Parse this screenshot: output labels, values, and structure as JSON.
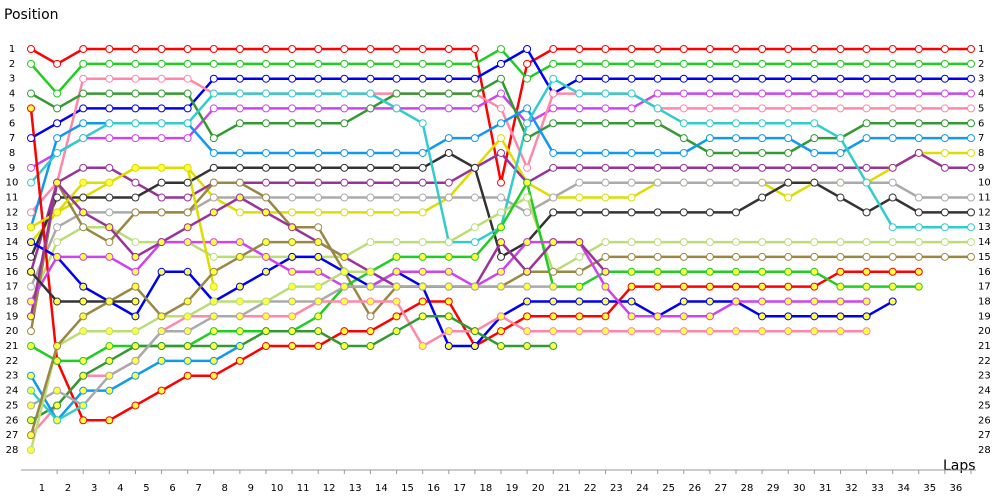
{
  "chart_data": {
    "type": "line",
    "y_label": "Position",
    "x_label": "Laps",
    "x": [
      0,
      1,
      2,
      3,
      4,
      5,
      6,
      7,
      8,
      9,
      10,
      11,
      12,
      13,
      14,
      15,
      16,
      17,
      18,
      19,
      20,
      21,
      22,
      23,
      24,
      25,
      26,
      27,
      28,
      29,
      30,
      31,
      32,
      33,
      34,
      35,
      36
    ],
    "xlim": [
      0,
      36
    ],
    "ylim": [
      1,
      28
    ],
    "y_inverted": true,
    "xticks": [
      1,
      2,
      3,
      4,
      5,
      6,
      7,
      8,
      9,
      10,
      11,
      12,
      13,
      14,
      15,
      16,
      17,
      18,
      19,
      20,
      21,
      22,
      23,
      24,
      25,
      26,
      27,
      28,
      29,
      30,
      31,
      32,
      33,
      34,
      35,
      36
    ],
    "yticks": [
      1,
      2,
      3,
      4,
      5,
      6,
      7,
      8,
      9,
      10,
      11,
      12,
      13,
      14,
      15,
      16,
      17,
      18,
      19,
      20,
      21,
      22,
      23,
      24,
      25,
      26,
      27,
      28
    ],
    "series": [
      {
        "color": "#ff0000",
        "marker_fill": "#ffffff",
        "values": [
          1,
          2,
          1,
          1,
          1,
          1,
          1,
          1,
          1,
          1,
          1,
          1,
          1,
          1,
          1,
          1,
          1,
          1,
          10,
          2,
          1,
          1,
          1,
          1,
          1,
          1,
          1,
          1,
          1,
          1,
          1,
          1,
          1,
          1,
          1,
          1,
          1
        ]
      },
      {
        "color": "#22cc22",
        "marker_fill": "#ffffff",
        "values": [
          2,
          4,
          2,
          2,
          2,
          2,
          2,
          2,
          2,
          2,
          2,
          2,
          2,
          2,
          2,
          2,
          2,
          2,
          1,
          3,
          2,
          2,
          2,
          2,
          2,
          2,
          2,
          2,
          2,
          2,
          2,
          2,
          2,
          2,
          2,
          2,
          2
        ]
      },
      {
        "color": "#0000ee",
        "marker_fill": "#ffffff",
        "values": [
          7,
          6,
          5,
          5,
          5,
          5,
          5,
          3,
          3,
          3,
          3,
          3,
          3,
          3,
          3,
          3,
          3,
          3,
          2,
          1,
          4,
          3,
          3,
          3,
          3,
          3,
          3,
          3,
          3,
          3,
          3,
          3,
          3,
          3,
          3,
          3,
          3
        ]
      },
      {
        "color": "#cc44ee",
        "marker_fill": "#ffffff",
        "values": [
          9,
          8,
          7,
          7,
          7,
          7,
          7,
          5,
          5,
          5,
          5,
          5,
          5,
          5,
          5,
          5,
          5,
          5,
          4,
          6,
          5,
          5,
          5,
          5,
          4,
          4,
          4,
          4,
          4,
          4,
          4,
          4,
          4,
          4,
          4,
          4,
          4
        ]
      },
      {
        "color": "#ff88aa",
        "marker_fill": "#ffffff",
        "values": [
          12,
          10,
          3,
          3,
          3,
          3,
          3,
          4,
          4,
          4,
          4,
          4,
          4,
          4,
          4,
          4,
          4,
          4,
          5,
          9,
          4,
          4,
          4,
          4,
          5,
          5,
          5,
          5,
          5,
          5,
          5,
          5,
          5,
          5,
          5,
          5,
          5
        ]
      },
      {
        "color": "#339933",
        "marker_fill": "#ffffff",
        "values": [
          4,
          5,
          4,
          4,
          4,
          4,
          4,
          7,
          6,
          6,
          6,
          6,
          6,
          5,
          4,
          4,
          4,
          4,
          3,
          7,
          6,
          6,
          6,
          6,
          6,
          7,
          8,
          8,
          8,
          8,
          7,
          7,
          6,
          6,
          6,
          6,
          6
        ]
      },
      {
        "color": "#1199ee",
        "marker_fill": "#ffffff",
        "values": [
          13,
          7,
          6,
          6,
          6,
          6,
          6,
          8,
          8,
          8,
          8,
          8,
          8,
          8,
          8,
          8,
          7,
          7,
          6,
          5,
          8,
          8,
          8,
          8,
          8,
          8,
          7,
          7,
          7,
          7,
          8,
          8,
          7,
          7,
          7,
          7,
          7
        ]
      },
      {
        "color": "#dddd00",
        "marker_fill": "#ffffff",
        "values": [
          14,
          12,
          11,
          10,
          9,
          9,
          9,
          11,
          12,
          12,
          12,
          12,
          12,
          12,
          12,
          12,
          11,
          9,
          7,
          10,
          11,
          11,
          11,
          11,
          10,
          10,
          10,
          10,
          10,
          11,
          10,
          10,
          10,
          9,
          8,
          8,
          8
        ]
      },
      {
        "color": "#993399",
        "marker_fill": "#ffffff",
        "values": [
          16,
          10,
          9,
          9,
          10,
          11,
          11,
          10,
          10,
          10,
          10,
          10,
          10,
          10,
          10,
          10,
          10,
          9,
          8,
          10,
          9,
          9,
          9,
          9,
          9,
          9,
          9,
          9,
          9,
          9,
          9,
          9,
          9,
          9,
          8,
          9,
          9
        ]
      },
      {
        "color": "#aaaaaa",
        "marker_fill": "#ffffff",
        "values": [
          17,
          13,
          12,
          12,
          12,
          12,
          12,
          11,
          11,
          11,
          11,
          11,
          11,
          11,
          11,
          11,
          11,
          11,
          11,
          12,
          11,
          10,
          10,
          10,
          10,
          10,
          10,
          10,
          10,
          10,
          10,
          10,
          10,
          10,
          11,
          11,
          11
        ]
      },
      {
        "color": "#333333",
        "marker_fill": "#ffffff",
        "values": [
          15,
          11,
          11,
          11,
          11,
          10,
          10,
          9,
          9,
          9,
          9,
          9,
          9,
          9,
          9,
          9,
          8,
          9,
          15,
          14,
          12,
          12,
          12,
          12,
          12,
          12,
          12,
          12,
          11,
          10,
          10,
          11,
          12,
          11,
          12,
          12,
          12
        ]
      },
      {
        "color": "#33cccc",
        "marker_fill": "#ffffff",
        "values": [
          10,
          8,
          7,
          6,
          6,
          6,
          6,
          4,
          4,
          4,
          4,
          4,
          4,
          4,
          5,
          6,
          14,
          14,
          13,
          6,
          3,
          4,
          4,
          4,
          5,
          6,
          6,
          6,
          6,
          6,
          6,
          7,
          10,
          13,
          13,
          13,
          13
        ]
      },
      {
        "color": "#bbdd77",
        "marker_fill": "#ffffff",
        "values": [
          18,
          14,
          13,
          13,
          14,
          14,
          14,
          15,
          15,
          15,
          15,
          15,
          15,
          14,
          14,
          14,
          14,
          13,
          12,
          11,
          16,
          15,
          14,
          14,
          14,
          14,
          14,
          14,
          14,
          14,
          14,
          14,
          14,
          14,
          14,
          14,
          14
        ]
      },
      {
        "color": "#998844",
        "marker_fill": "#ffffff",
        "values": [
          20,
          10,
          13,
          14,
          12,
          12,
          12,
          10,
          10,
          11,
          13,
          13,
          16,
          19,
          17,
          17,
          17,
          17,
          17,
          16,
          16,
          16,
          15,
          15,
          15,
          15,
          15,
          15,
          15,
          15,
          15,
          15,
          15,
          15,
          15,
          15,
          15
        ]
      },
      {
        "color": "#ff0000",
        "marker_fill": "#ffff44",
        "values": [
          5,
          22,
          26,
          26,
          25,
          24,
          23,
          23,
          22,
          21,
          21,
          21,
          20,
          20,
          19,
          18,
          18,
          21,
          20,
          19,
          19,
          19,
          19,
          17,
          17,
          17,
          17,
          17,
          17,
          17,
          17,
          16,
          16,
          16,
          16,
          null,
          null
        ]
      },
      {
        "color": "#22cc22",
        "marker_fill": "#ffff44",
        "values": [
          21,
          22,
          22,
          21,
          21,
          21,
          21,
          20,
          20,
          20,
          20,
          19,
          17,
          16,
          15,
          15,
          15,
          15,
          13,
          10,
          17,
          17,
          16,
          16,
          16,
          16,
          16,
          16,
          16,
          16,
          16,
          17,
          17,
          17,
          17,
          null,
          null
        ]
      },
      {
        "color": "#0000ee",
        "marker_fill": "#ffff44",
        "values": [
          14,
          15,
          17,
          18,
          19,
          16,
          16,
          18,
          17,
          16,
          15,
          15,
          16,
          17,
          16,
          17,
          21,
          21,
          19,
          18,
          18,
          18,
          18,
          18,
          19,
          18,
          18,
          18,
          19,
          19,
          19,
          19,
          19,
          18,
          null,
          null,
          null
        ]
      },
      {
        "color": "#cc44ee",
        "marker_fill": "#ffff44",
        "values": [
          18,
          15,
          15,
          15,
          16,
          14,
          14,
          14,
          14,
          15,
          16,
          16,
          17,
          17,
          16,
          16,
          16,
          17,
          16,
          14,
          14,
          14,
          17,
          19,
          19,
          19,
          19,
          18,
          18,
          18,
          18,
          18,
          18,
          null,
          null,
          null,
          null
        ]
      },
      {
        "color": "#ff88aa",
        "marker_fill": "#ffff44",
        "values": [
          27,
          25,
          23,
          23,
          22,
          20,
          19,
          19,
          19,
          19,
          19,
          18,
          18,
          18,
          18,
          21,
          20,
          20,
          19,
          20,
          20,
          20,
          20,
          20,
          20,
          20,
          20,
          20,
          20,
          20,
          20,
          20,
          20,
          null,
          null,
          null,
          null
        ]
      },
      {
        "color": "#339933",
        "marker_fill": "#ffff44",
        "values": [
          26,
          25,
          23,
          22,
          21,
          21,
          21,
          21,
          21,
          20,
          20,
          20,
          21,
          21,
          20,
          19,
          19,
          20,
          21,
          21,
          21,
          null,
          null,
          null,
          null,
          null,
          null,
          null,
          null,
          null,
          null,
          null,
          null,
          null,
          null,
          null,
          null
        ]
      },
      {
        "color": "#1199ee",
        "marker_fill": "#ffff44",
        "values": [
          23,
          26,
          24,
          24,
          23,
          22,
          22,
          22,
          21,
          null,
          null,
          null,
          null,
          null,
          null,
          null,
          null,
          null,
          null,
          null,
          null,
          null,
          null,
          null,
          null,
          null,
          null,
          null,
          null,
          null,
          null,
          null,
          null,
          null,
          null,
          null,
          null
        ]
      },
      {
        "color": "#dddd00",
        "marker_fill": "#ffff44",
        "values": [
          13,
          12,
          10,
          10,
          9,
          9,
          9,
          17,
          null,
          null,
          null,
          null,
          null,
          null,
          null,
          null,
          null,
          null,
          null,
          null,
          null,
          null,
          null,
          null,
          null,
          null,
          null,
          null,
          null,
          null,
          null,
          null,
          null,
          null,
          null,
          null,
          null
        ]
      },
      {
        "color": "#993399",
        "marker_fill": "#ffff44",
        "values": [
          19,
          10,
          12,
          13,
          15,
          14,
          13,
          12,
          11,
          12,
          13,
          14,
          15,
          16,
          17,
          17,
          17,
          17,
          14,
          16,
          14,
          14,
          16,
          null,
          null,
          null,
          null,
          null,
          null,
          null,
          null,
          null,
          null,
          null,
          null,
          null,
          null
        ]
      },
      {
        "color": "#aaaaaa",
        "marker_fill": "#ffff44",
        "values": [
          25,
          24,
          25,
          23,
          22,
          20,
          20,
          19,
          19,
          18,
          18,
          18,
          17,
          17,
          17,
          17,
          17,
          17,
          17,
          17,
          17,
          null,
          null,
          null,
          null,
          null,
          null,
          null,
          null,
          null,
          null,
          null,
          null,
          null,
          null,
          null,
          null
        ]
      },
      {
        "color": "#333333",
        "marker_fill": "#ffff44",
        "values": [
          16,
          18,
          18,
          18,
          18,
          null,
          null,
          null,
          null,
          null,
          null,
          null,
          null,
          null,
          null,
          null,
          null,
          null,
          null,
          null,
          null,
          null,
          null,
          null,
          null,
          null,
          null,
          null,
          null,
          null,
          null,
          null,
          null,
          null,
          null,
          null,
          null
        ]
      },
      {
        "color": "#33cccc",
        "marker_fill": "#ffff44",
        "values": [
          24,
          26,
          25,
          null,
          null,
          null,
          null,
          null,
          null,
          null,
          null,
          null,
          null,
          null,
          null,
          null,
          null,
          null,
          null,
          null,
          null,
          null,
          null,
          null,
          null,
          null,
          null,
          null,
          null,
          null,
          null,
          null,
          null,
          null,
          null,
          null,
          null
        ]
      },
      {
        "color": "#bbdd77",
        "marker_fill": "#ffff44",
        "values": [
          28,
          21,
          20,
          20,
          20,
          19,
          19,
          18,
          18,
          18,
          17,
          17,
          16,
          16,
          null,
          null,
          null,
          null,
          null,
          null,
          null,
          null,
          null,
          null,
          null,
          null,
          null,
          null,
          null,
          null,
          null,
          null,
          null,
          null,
          null,
          null,
          null
        ]
      },
      {
        "color": "#998844",
        "marker_fill": "#ffff44",
        "values": [
          27,
          21,
          19,
          18,
          17,
          19,
          18,
          16,
          15,
          14,
          14,
          14,
          15,
          null,
          null,
          null,
          null,
          null,
          null,
          null,
          null,
          null,
          null,
          null,
          null,
          null,
          null,
          null,
          null,
          null,
          null,
          null,
          null,
          null,
          null,
          null,
          null
        ]
      }
    ]
  }
}
